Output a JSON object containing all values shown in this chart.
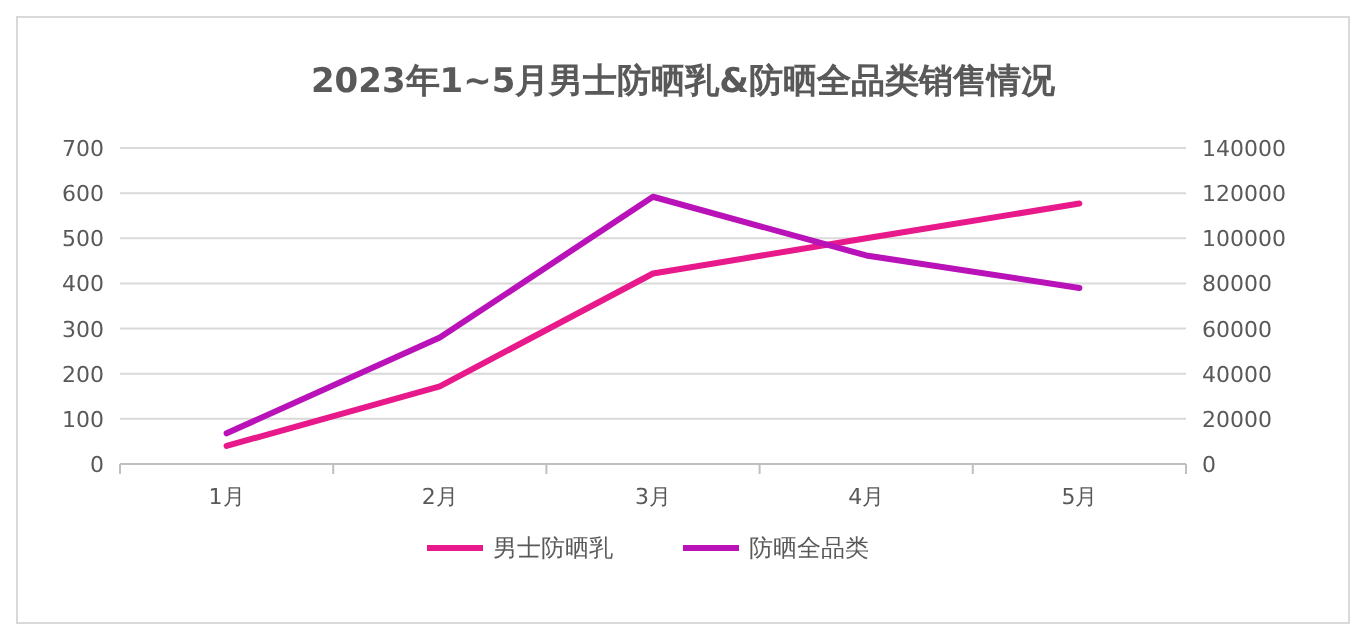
{
  "chart_data": {
    "type": "line",
    "title": "2023年1~5月男士防晒乳&防晒全品类销售情况",
    "categories": [
      "1月",
      "2月",
      "3月",
      "4月",
      "5月"
    ],
    "series": [
      {
        "name": "男士防晒乳",
        "color": "#e8198b",
        "values": [
          40,
          172,
          422,
          500,
          577
        ]
      },
      {
        "name": "防晒全品类",
        "color": "#b812b8",
        "values": [
          13600,
          56000,
          118400,
          92400,
          78000
        ],
        "axis": "y2"
      }
    ],
    "ylim": [
      0,
      700
    ],
    "yticks": [
      0,
      100,
      200,
      300,
      400,
      500,
      600,
      700
    ],
    "y2lim": [
      0,
      140000
    ],
    "y2ticks": [
      0,
      20000,
      40000,
      60000,
      80000,
      100000,
      120000,
      140000
    ],
    "grid": "y",
    "legend": "bottom",
    "marker": "none"
  }
}
